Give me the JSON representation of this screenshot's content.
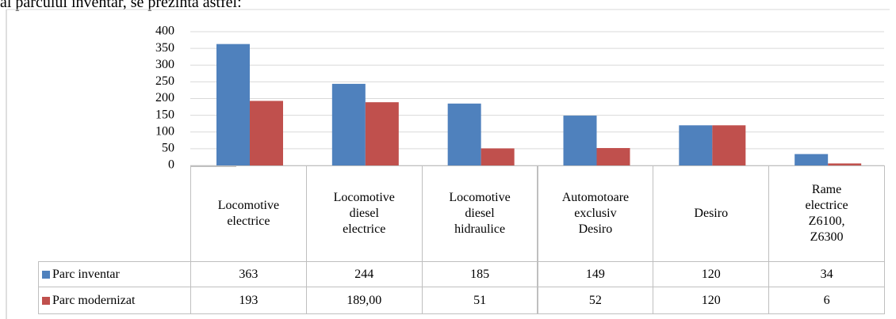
{
  "caption": "al parcului inventar, se prezintă astfel:",
  "chart_data": {
    "type": "bar",
    "categories": [
      "Locomotive electrice",
      "Locomotive diesel electrice",
      "Locomotive diesel hidraulice",
      "Automotoare exclusiv Desiro",
      "Desiro",
      "Rame electrice Z6100, Z6300"
    ],
    "series": [
      {
        "name": "Parc inventar",
        "color": "#4f81bd",
        "values": [
          363,
          244,
          185,
          149,
          120,
          34
        ]
      },
      {
        "name": "Parc modernizat",
        "color": "#c0504d",
        "values": [
          193,
          189,
          51,
          52,
          120,
          6
        ],
        "value_labels": [
          "193",
          "189,00",
          "51",
          "52",
          "120",
          "6"
        ]
      }
    ],
    "ylim": [
      0,
      400
    ],
    "yticks": [
      0,
      50,
      100,
      150,
      200,
      250,
      300,
      350,
      400
    ],
    "grid": true
  }
}
